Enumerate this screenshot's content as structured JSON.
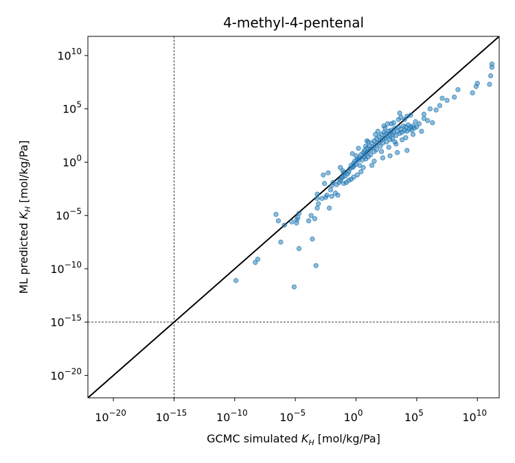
{
  "chart_data": {
    "type": "scatter",
    "title": "4-methyl-4-pentenal",
    "xlabel": {
      "prefix": "GCMC simulated ",
      "symbol": "K",
      "sub": "H",
      "suffix": " [mol/kg/Pa]"
    },
    "ylabel": {
      "prefix": "ML predicted ",
      "symbol": "K",
      "sub": "H",
      "suffix": " [mol/kg/Pa]"
    },
    "xscale": "log",
    "yscale": "log",
    "xlim_exponent": [
      -22.1,
      11.8
    ],
    "ylim_exponent": [
      -22.1,
      11.8
    ],
    "tick_exponents": [
      -20,
      -15,
      -10,
      -5,
      0,
      5,
      10
    ],
    "tick_labels": [
      "10^-20",
      "10^-15",
      "10^-10",
      "10^-5",
      "10^0",
      "10^5",
      "10^10"
    ],
    "reference_line": "y = x",
    "threshold_exponent": -15,
    "point_color": "#1f77b4",
    "point_alpha": 0.5,
    "points_log10": [
      [
        -9.9,
        -11.1
      ],
      [
        -8.3,
        -9.4
      ],
      [
        -8.1,
        -9.1
      ],
      [
        -6.2,
        -7.5
      ],
      [
        -5.1,
        -11.7
      ],
      [
        -4.7,
        -8.1
      ],
      [
        -3.3,
        -9.7
      ],
      [
        -3.6,
        -7.2
      ],
      [
        -6.6,
        -4.9
      ],
      [
        -6.4,
        -5.5
      ],
      [
        -5.9,
        -5.9
      ],
      [
        -5.3,
        -5.6
      ],
      [
        -4.8,
        -5.2
      ],
      [
        -4.9,
        -5.4
      ],
      [
        -4.7,
        -4.8
      ],
      [
        -4.9,
        -5.7
      ],
      [
        -3.9,
        -5.5
      ],
      [
        -3.7,
        -5.0
      ],
      [
        -3.4,
        -5.3
      ],
      [
        -3.2,
        -4.3
      ],
      [
        -3.1,
        -3.9
      ],
      [
        -3.2,
        -3.4
      ],
      [
        -2.8,
        -3.4
      ],
      [
        -2.5,
        -3.3
      ],
      [
        -2.4,
        -3.1
      ],
      [
        -2.0,
        -3.2
      ],
      [
        -2.2,
        -4.3
      ],
      [
        -1.5,
        -3.1
      ],
      [
        -3.2,
        -3.0
      ],
      [
        -2.6,
        -2.0
      ],
      [
        -2.7,
        -1.2
      ],
      [
        -2.0,
        -2.2
      ],
      [
        -1.9,
        -1.9
      ],
      [
        -1.6,
        -2.1
      ],
      [
        -1.4,
        -1.9
      ],
      [
        -1.3,
        -1.7
      ],
      [
        -1.2,
        -1.5
      ],
      [
        -1.1,
        -1.4
      ],
      [
        -1.0,
        -1.0
      ],
      [
        -0.9,
        -1.3
      ],
      [
        -0.8,
        -1.9
      ],
      [
        -1.0,
        -2.0
      ],
      [
        -1.1,
        -0.8
      ],
      [
        -0.7,
        -1.1
      ],
      [
        -0.6,
        -0.9
      ],
      [
        -0.5,
        -0.6
      ],
      [
        -0.4,
        -0.3
      ],
      [
        -0.3,
        -0.5
      ],
      [
        -0.2,
        -0.4
      ],
      [
        -0.2,
        -0.1
      ],
      [
        -0.1,
        0.1
      ],
      [
        0.0,
        -0.2
      ],
      [
        0.1,
        0.3
      ],
      [
        0.0,
        0.6
      ],
      [
        0.2,
        0.2
      ],
      [
        0.3,
        0.4
      ],
      [
        0.3,
        -0.3
      ],
      [
        0.4,
        0.7
      ],
      [
        0.5,
        0.2
      ],
      [
        0.6,
        0.9
      ],
      [
        0.7,
        0.5
      ],
      [
        0.7,
        1.1
      ],
      [
        0.8,
        0.3
      ],
      [
        0.8,
        0.8
      ],
      [
        0.9,
        1.3
      ],
      [
        1.0,
        1.0
      ],
      [
        1.0,
        0.5
      ],
      [
        1.1,
        1.5
      ],
      [
        1.2,
        1.2
      ],
      [
        1.2,
        0.7
      ],
      [
        1.3,
        1.8
      ],
      [
        1.4,
        1.4
      ],
      [
        1.5,
        1.0
      ],
      [
        1.5,
        2.0
      ],
      [
        1.6,
        1.6
      ],
      [
        1.7,
        2.2
      ],
      [
        1.7,
        1.2
      ],
      [
        1.8,
        1.8
      ],
      [
        1.9,
        2.4
      ],
      [
        2.0,
        2.0
      ],
      [
        2.0,
        1.5
      ],
      [
        2.1,
        2.6
      ],
      [
        2.2,
        2.2
      ],
      [
        2.2,
        1.8
      ],
      [
        2.3,
        2.8
      ],
      [
        2.4,
        2.3
      ],
      [
        2.5,
        2.7
      ],
      [
        2.5,
        1.9
      ],
      [
        2.6,
        2.4
      ],
      [
        2.7,
        2.9
      ],
      [
        2.8,
        2.5
      ],
      [
        2.8,
        2.1
      ],
      [
        2.9,
        3.0
      ],
      [
        3.0,
        2.6
      ],
      [
        3.0,
        2.2
      ],
      [
        3.1,
        2.8
      ],
      [
        3.2,
        3.2
      ],
      [
        3.3,
        2.5
      ],
      [
        3.4,
        2.9
      ],
      [
        3.5,
        3.3
      ],
      [
        3.6,
        2.7
      ],
      [
        3.7,
        3.1
      ],
      [
        3.8,
        2.8
      ],
      [
        3.9,
        3.4
      ],
      [
        4.0,
        3.0
      ],
      [
        4.1,
        3.3
      ],
      [
        4.2,
        2.9
      ],
      [
        4.3,
        3.5
      ],
      [
        4.4,
        3.1
      ],
      [
        4.5,
        3.3
      ],
      [
        4.6,
        3.0
      ],
      [
        4.7,
        3.4
      ],
      [
        4.8,
        3.2
      ],
      [
        5.0,
        3.3
      ],
      [
        5.2,
        3.6
      ],
      [
        5.4,
        2.9
      ],
      [
        2.3,
        3.4
      ],
      [
        2.6,
        3.6
      ],
      [
        3.1,
        3.7
      ],
      [
        3.5,
        4.0
      ],
      [
        3.7,
        4.2
      ],
      [
        4.0,
        4.0
      ],
      [
        4.2,
        4.3
      ],
      [
        4.5,
        4.4
      ],
      [
        4.9,
        3.8
      ],
      [
        5.6,
        4.1
      ],
      [
        5.9,
        3.9
      ],
      [
        6.3,
        3.7
      ],
      [
        6.6,
        4.9
      ],
      [
        6.9,
        5.3
      ],
      [
        7.1,
        6.0
      ],
      [
        7.5,
        5.8
      ],
      [
        8.1,
        6.1
      ],
      [
        8.4,
        6.8
      ],
      [
        9.6,
        6.5
      ],
      [
        9.9,
        7.1
      ],
      [
        10.0,
        7.4
      ],
      [
        11.0,
        7.3
      ],
      [
        11.1,
        8.1
      ],
      [
        11.2,
        8.9
      ],
      [
        11.2,
        9.2
      ],
      [
        1.5,
        0.1
      ],
      [
        2.2,
        0.4
      ],
      [
        2.8,
        0.6
      ],
      [
        3.4,
        0.9
      ],
      [
        4.2,
        1.1
      ],
      [
        0.6,
        -0.5
      ],
      [
        1.3,
        -0.3
      ],
      [
        0.1,
        -1.2
      ],
      [
        -0.4,
        -1.6
      ],
      [
        1.8,
        2.9
      ],
      [
        2.4,
        3.2
      ],
      [
        -1.7,
        -2.9
      ],
      [
        -2.1,
        -2.6
      ],
      [
        -0.6,
        -1.7
      ],
      [
        -0.2,
        -1.4
      ],
      [
        0.4,
        -0.9
      ],
      [
        2.1,
        1.0
      ],
      [
        2.7,
        1.4
      ],
      [
        3.3,
        1.7
      ],
      [
        4.1,
        2.3
      ],
      [
        4.7,
        2.6
      ],
      [
        1.6,
        2.6
      ],
      [
        0.9,
        2.0
      ],
      [
        0.2,
        1.3
      ],
      [
        -0.3,
        0.8
      ],
      [
        -1.3,
        -0.5
      ],
      [
        -2.3,
        -1.0
      ],
      [
        3.8,
        2.1
      ],
      [
        3.2,
        1.9
      ],
      [
        5.6,
        4.5
      ],
      [
        6.1,
        5.0
      ],
      [
        1.0,
        1.9
      ],
      [
        0.8,
        1.5
      ],
      [
        2.9,
        3.6
      ],
      [
        3.6,
        4.6
      ]
    ]
  }
}
